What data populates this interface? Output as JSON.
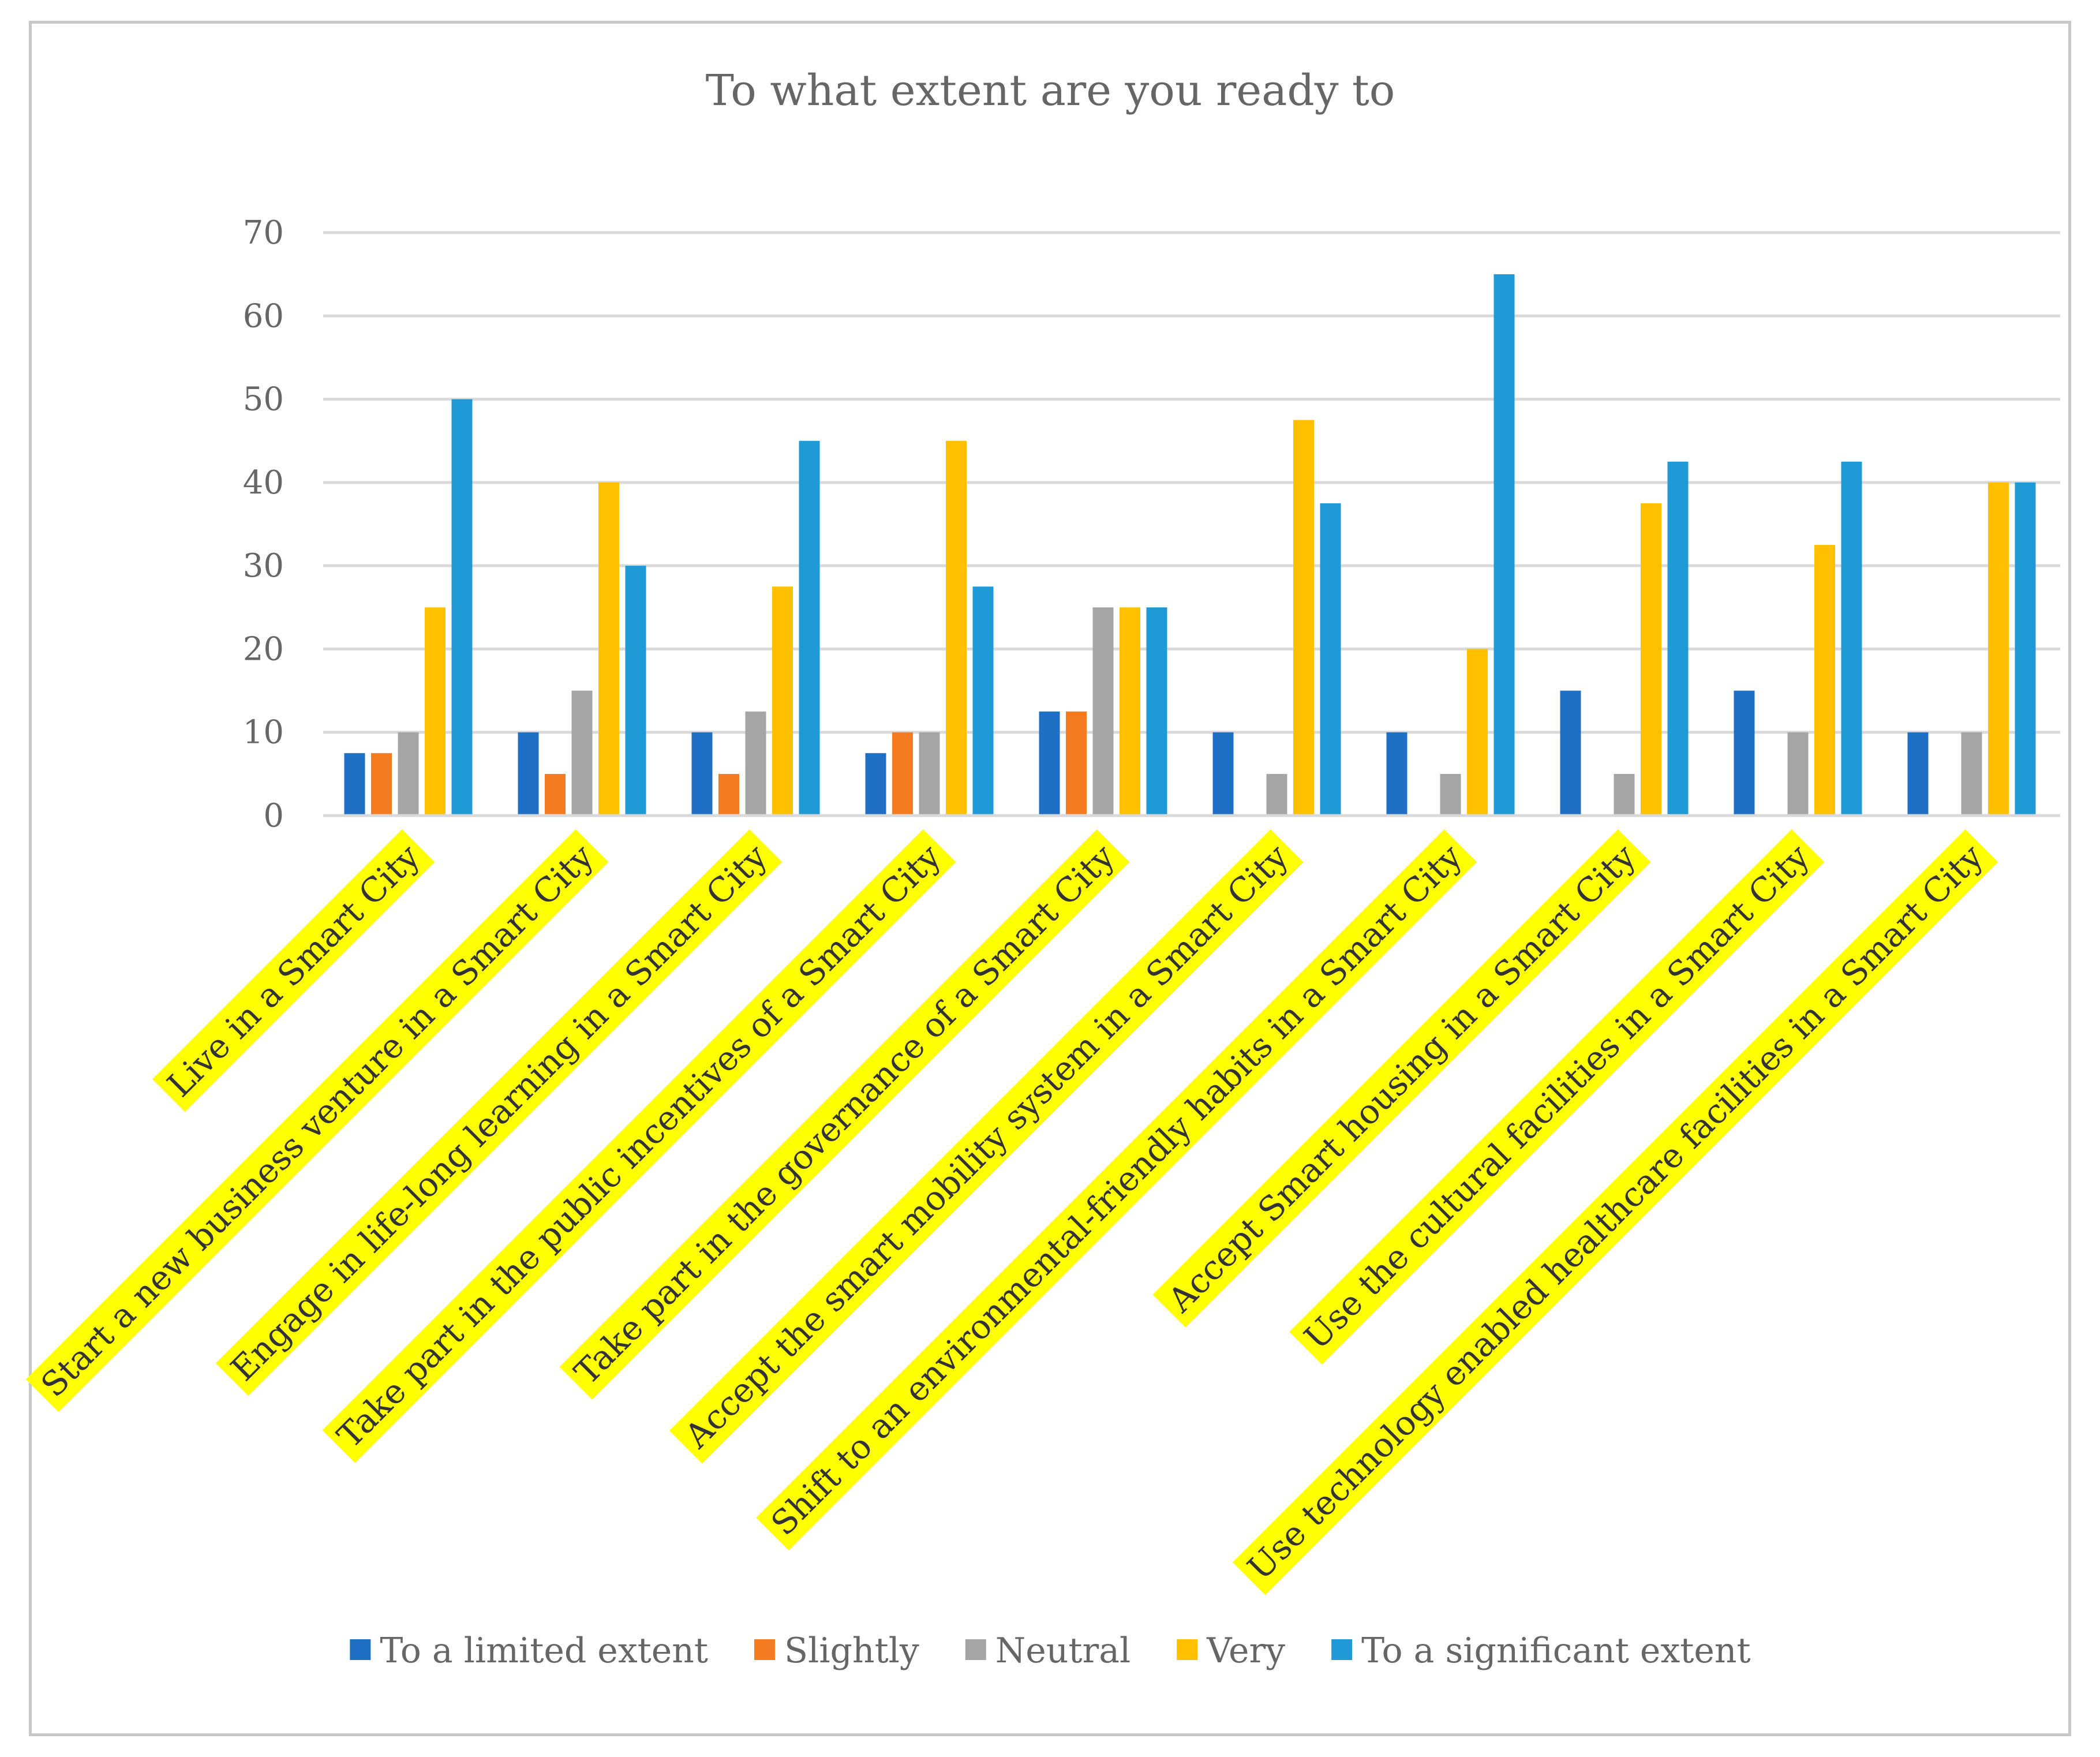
{
  "chart_data": {
    "type": "bar",
    "title": "To what extent are you ready to",
    "xlabel": "",
    "ylabel": "",
    "ylim": [
      0,
      70
    ],
    "yticks": [
      0,
      10,
      20,
      30,
      40,
      50,
      60,
      70
    ],
    "grid": true,
    "legend_position": "bottom",
    "category_highlight_color": "#ffff00",
    "categories": [
      "Live in a Smart City",
      "Start a new business venture in a Smart City",
      "Engage in life-long learning in a Smart City",
      "Take part in the public incentives of a Smart City",
      "Take part in the governance of a Smart City",
      "Accept the smart mobility system in a Smart City",
      "Shift to an environmental-friendly habits in a Smart City",
      "Accept Smart housing in a Smart City",
      "Use the cultural facilities in a Smart City",
      "Use technology enabled healthcare facilities in a Smart City"
    ],
    "series": [
      {
        "name": "To a limited extent",
        "color": "#1f6fc5",
        "values": [
          7.5,
          10,
          10,
          7.5,
          12.5,
          10,
          10,
          15,
          15,
          10
        ]
      },
      {
        "name": "Slightly",
        "color": "#f47b20",
        "values": [
          7.5,
          5,
          5,
          10,
          12.5,
          0,
          0,
          0,
          0,
          0
        ]
      },
      {
        "name": "Neutral",
        "color": "#a5a5a5",
        "values": [
          10,
          15,
          12.5,
          10,
          25,
          5,
          5,
          5,
          10,
          10
        ]
      },
      {
        "name": "Very",
        "color": "#ffc000",
        "values": [
          25,
          40,
          27.5,
          45,
          25,
          47.5,
          20,
          37.5,
          32.5,
          40
        ]
      },
      {
        "name": "To a significant extent",
        "color": "#1f9ad6",
        "values": [
          50,
          30,
          45,
          27.5,
          25,
          37.5,
          65,
          42.5,
          42.5,
          40
        ]
      }
    ]
  }
}
